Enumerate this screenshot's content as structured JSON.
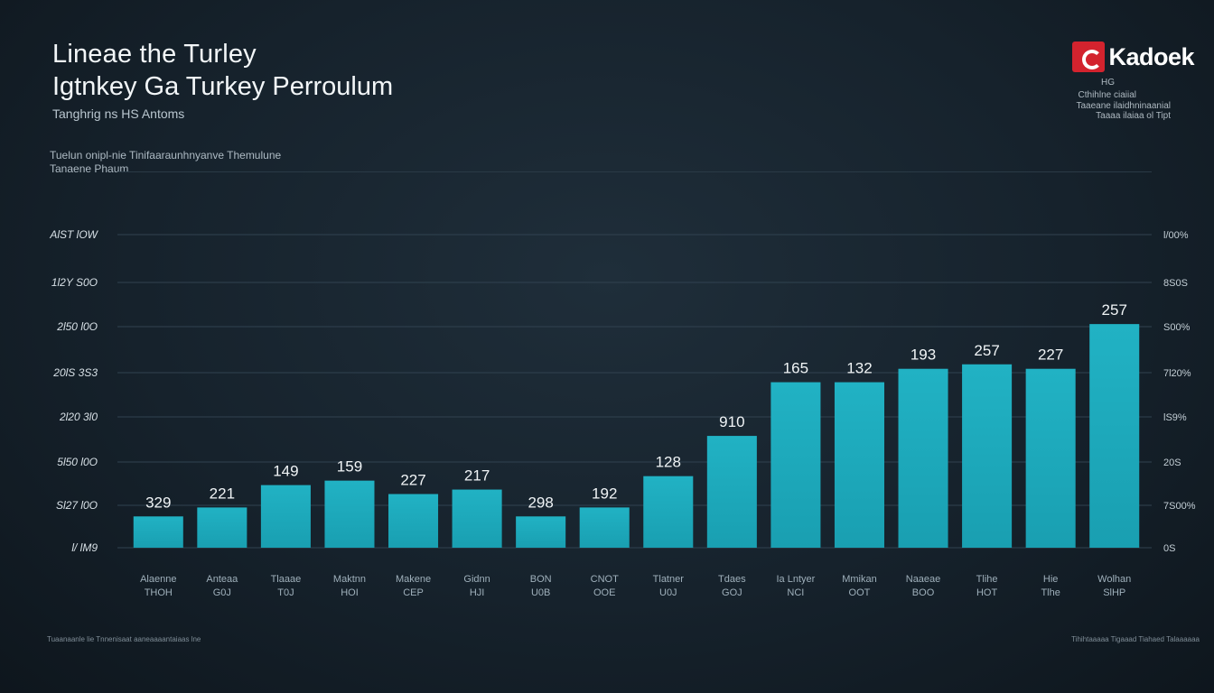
{
  "header": {
    "title_line1": "Lineae the Turley",
    "title_line2": "Igtnkey Ga Turkey Perroulum",
    "subtitle": "Tanghrig ns HS Antoms",
    "note_line1": "Tuelun onipl-nie Tinifaaraunhnyanve Themulune",
    "note_line2": "Tanaene Phaum"
  },
  "brand": {
    "name": "Kadoek",
    "sub1": "HG",
    "sub2": "Cthihlne ciaiial",
    "sub3": "Taaeane ilaidhninaanial",
    "sub4": "Taaaa ilaiaa ol Tipt"
  },
  "footer": {
    "left": "Tuaanaanle lie Tnnenisaat aaneaaaantaiaas lne",
    "right": "Tihihtaaaaa Tigaaad Tiahaed Talaaaaaa"
  },
  "colors": {
    "bar": "#199fb1",
    "bar_top": "#21b2c4",
    "grid": "#314250",
    "background": "#16222c"
  },
  "chart_data": {
    "type": "bar",
    "title": "Igtnkey Ga Turkey Perroulum",
    "left_ticks": [
      "AlST lOW",
      "1l2Y S0O",
      "2l50 l0O",
      "20lS 3S3",
      "2l20 3l0",
      "5l50 l0O",
      "Sl27 l0O",
      "l/ lM9"
    ],
    "right_ticks": [
      "l/00%",
      "8S0S",
      "S00%",
      "7l20%",
      "lS9%",
      "20S",
      "7S00%",
      "0S"
    ],
    "categories": [
      "Alaenne",
      "Anteaa",
      "Tlaaae",
      "Maktnn",
      "Makene",
      "Gidnn",
      "BON",
      "CNOT",
      "Tlatner",
      "Tdaes",
      "Ia Lntyer",
      "Mmikan",
      "Naaeae",
      "Tlihe",
      "Hie",
      "Wolhan"
    ],
    "category_sublabels": [
      "THOH",
      "G0J",
      "T0J",
      "HOI",
      "CEP",
      "HJI",
      "U0B",
      "OOE",
      "U0J",
      "GOJ",
      "NCI",
      "OOT",
      "BOO",
      "HOT",
      "Tlhe",
      "SlHP"
    ],
    "value_labels": [
      "329",
      "221",
      "149",
      "159",
      "227",
      "217",
      "298",
      "192",
      "128",
      "910",
      "165",
      "132",
      "193",
      "257",
      "227",
      "257"
    ],
    "values": [
      0.7,
      0.9,
      1.4,
      1.5,
      1.2,
      1.3,
      0.7,
      0.9,
      1.6,
      2.5,
      3.7,
      3.7,
      4.0,
      4.1,
      4.0,
      5.0
    ],
    "ylim": [
      0,
      7
    ],
    "grid": true,
    "legend": "none"
  }
}
